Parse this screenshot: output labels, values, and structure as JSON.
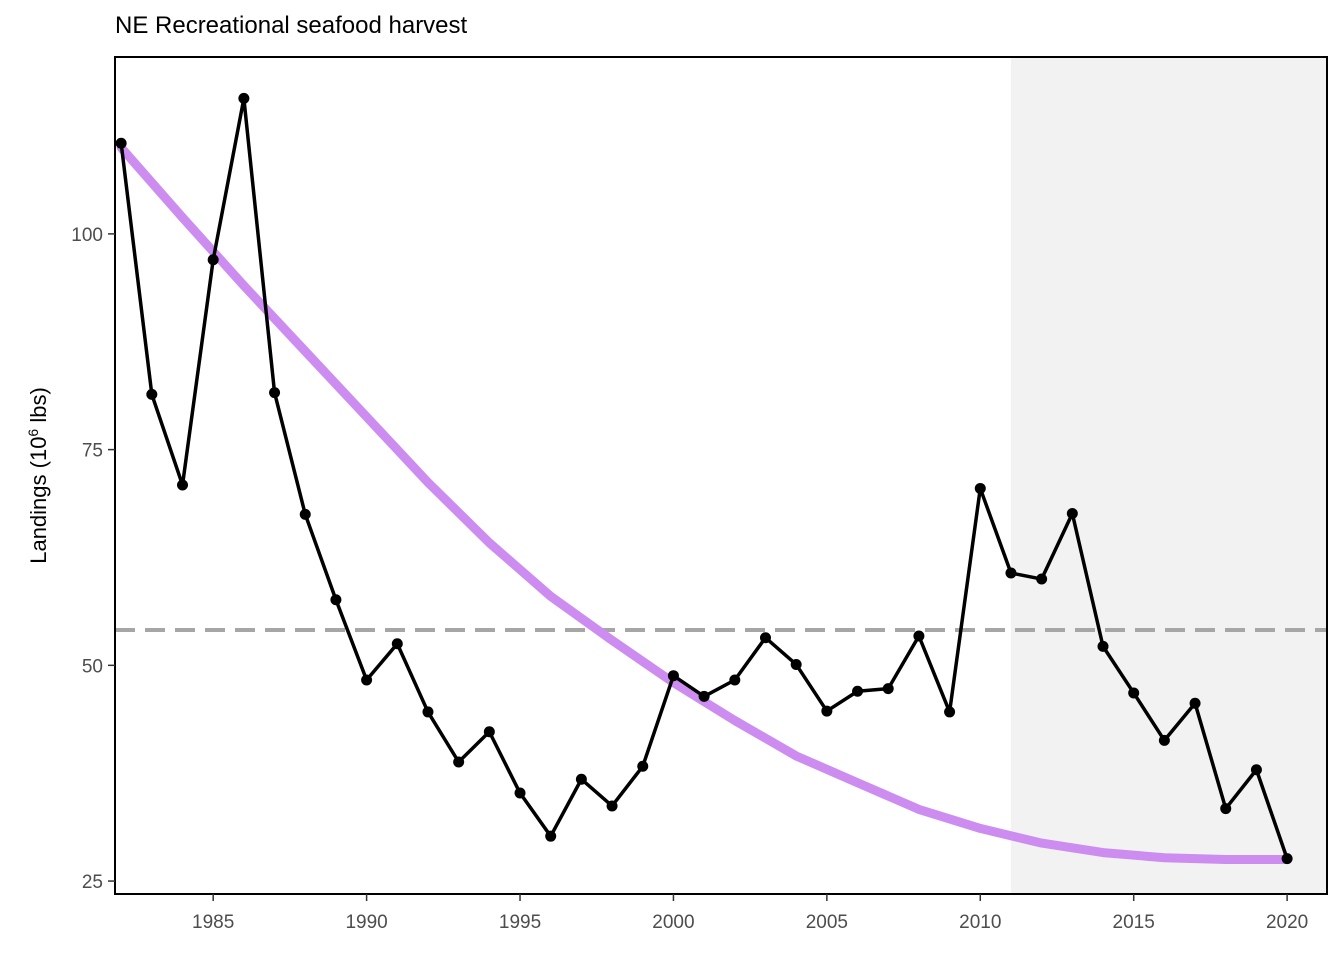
{
  "chart_data": {
    "type": "line",
    "title": "NE Recreational seafood harvest",
    "xlabel": "",
    "ylabel": {
      "prefix": "Landings (10",
      "superscript": "6",
      "suffix": " lbs)"
    },
    "xlim": [
      1981.8,
      2021.3
    ],
    "ylim": [
      23.5,
      120.5
    ],
    "x_ticks": [
      1985,
      1990,
      1995,
      2000,
      2005,
      2010,
      2015,
      2020
    ],
    "y_ticks": [
      25,
      50,
      75,
      100
    ],
    "grid": false,
    "shaded_region": {
      "x_start": 2011,
      "x_end": 2021.3,
      "color": "#f2f2f2"
    },
    "reference_line": {
      "y": 54.1,
      "style": "dashed",
      "color": "#a6a6a6"
    },
    "series": [
      {
        "x": [
          1982,
          1983,
          1984,
          1985,
          1986,
          1987,
          1988,
          1989,
          1990,
          1991,
          1992,
          1993,
          1994,
          1995,
          1996,
          1997,
          1998,
          1999,
          2000,
          2001,
          2002,
          2003,
          2004,
          2005,
          2006,
          2007,
          2008,
          2009,
          2010,
          2011,
          2012,
          2013,
          2014,
          2015,
          2016,
          2017,
          2018,
          2019,
          2020
        ],
        "values": [
          110.5,
          81.4,
          70.9,
          97.0,
          115.7,
          81.6,
          67.5,
          57.6,
          48.3,
          52.5,
          44.6,
          38.8,
          42.3,
          35.2,
          30.2,
          36.8,
          33.7,
          38.3,
          48.8,
          46.4,
          48.3,
          53.2,
          50.1,
          44.7,
          47.0,
          47.3,
          53.4,
          44.6,
          70.5,
          60.7,
          60.0,
          67.6,
          52.2,
          46.8,
          41.3,
          45.6,
          33.4,
          37.9,
          27.6
        ],
        "color": "#000000",
        "marker": "circle"
      },
      {
        "type": "trend",
        "x": [
          1982,
          1984,
          1986,
          1988,
          1990,
          1992,
          1994,
          1996,
          1998,
          2000,
          2002,
          2004,
          2006,
          2008,
          2010,
          2012,
          2014,
          2016,
          2018,
          2020
        ],
        "values": [
          110.0,
          101.9,
          94.0,
          86.4,
          78.8,
          71.2,
          64.2,
          58.0,
          52.9,
          48.0,
          43.6,
          39.5,
          36.4,
          33.3,
          31.1,
          29.4,
          28.3,
          27.7,
          27.5,
          27.5
        ],
        "color": "#cd8cf0"
      }
    ]
  }
}
